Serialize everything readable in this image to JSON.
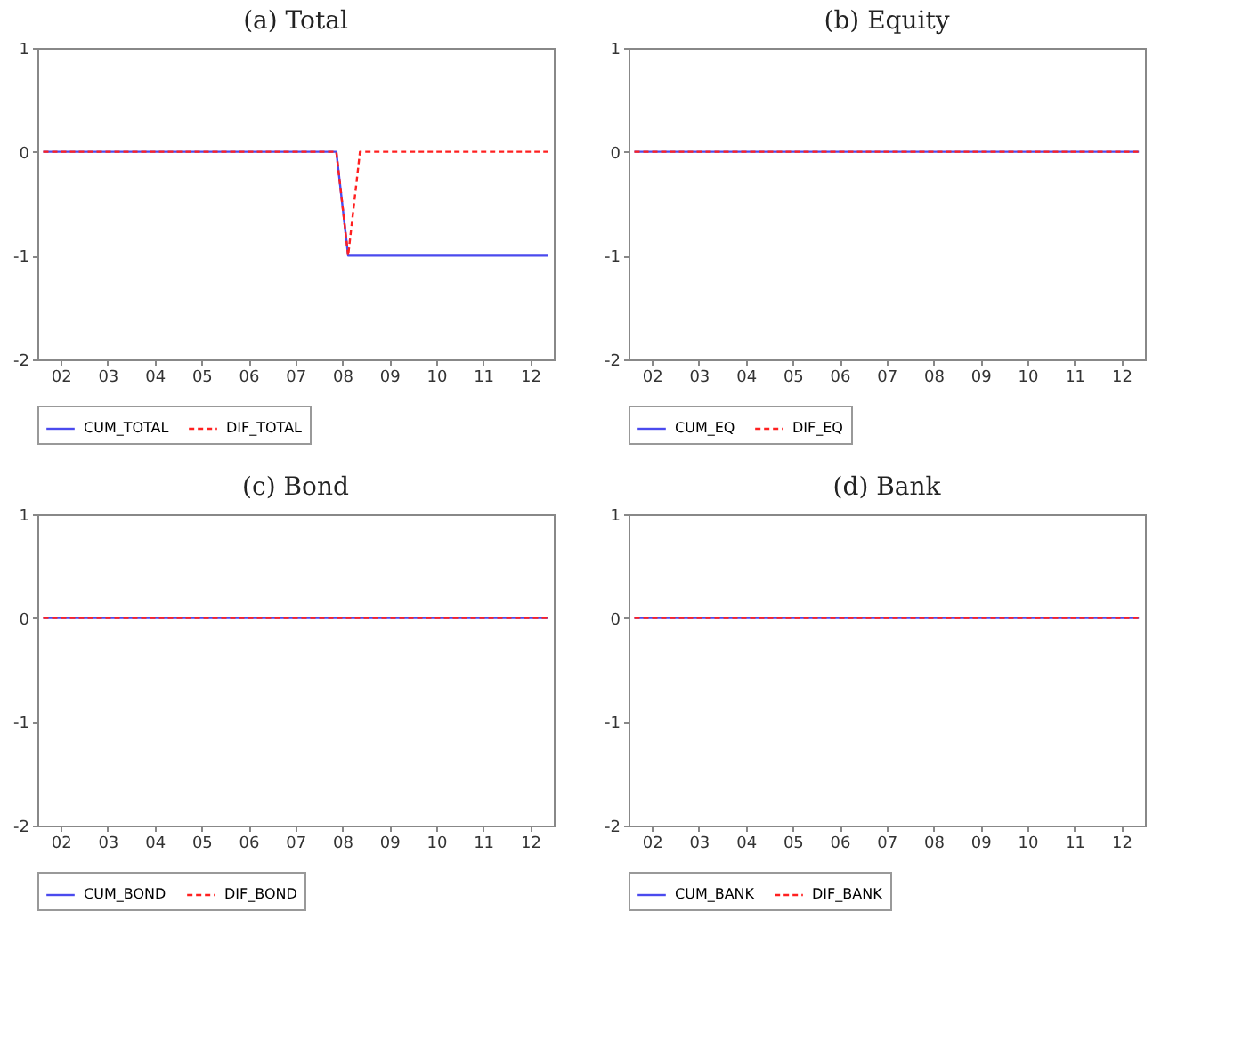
{
  "chart_data": [
    {
      "type": "line",
      "title": "(a) Total",
      "xlim": [
        "2002-01-01",
        "2013-01-01"
      ],
      "ylim": [
        -2,
        1
      ],
      "yticks": [
        -2,
        -1,
        0,
        1
      ],
      "xticks": [
        {
          "value": "2002-07-01",
          "label": "02"
        },
        {
          "value": "2003-07-01",
          "label": "03"
        },
        {
          "value": "2004-07-01",
          "label": "04"
        },
        {
          "value": "2005-07-01",
          "label": "05"
        },
        {
          "value": "2006-07-01",
          "label": "06"
        },
        {
          "value": "2007-07-01",
          "label": "07"
        },
        {
          "value": "2008-07-01",
          "label": "08"
        },
        {
          "value": "2009-07-01",
          "label": "09"
        },
        {
          "value": "2010-07-01",
          "label": "10"
        },
        {
          "value": "2011-07-01",
          "label": "11"
        },
        {
          "value": "2012-07-01",
          "label": "12"
        }
      ],
      "legend": "bottom",
      "series": [
        {
          "name": "CUM_TOTAL",
          "color": "#4a4aee",
          "line_style": "solid",
          "x": [
            "2002-02-15",
            "2008-05-15",
            "2008-08-15",
            "2012-11-15"
          ],
          "values": [
            0,
            0,
            -1,
            -1
          ]
        },
        {
          "name": "DIF_TOTAL",
          "color": "#ff2020",
          "line_style": "dashed",
          "x": [
            "2002-02-15",
            "2008-05-15",
            "2008-08-15",
            "2008-11-15",
            "2012-11-15"
          ],
          "values": [
            0,
            0,
            -1,
            0,
            0
          ]
        }
      ]
    },
    {
      "type": "line",
      "title": "(b) Equity",
      "xlim": [
        "2002-01-01",
        "2013-01-01"
      ],
      "ylim": [
        -2,
        1
      ],
      "yticks": [
        -2,
        -1,
        0,
        1
      ],
      "xticks": [
        {
          "value": "2002-07-01",
          "label": "02"
        },
        {
          "value": "2003-07-01",
          "label": "03"
        },
        {
          "value": "2004-07-01",
          "label": "04"
        },
        {
          "value": "2005-07-01",
          "label": "05"
        },
        {
          "value": "2006-07-01",
          "label": "06"
        },
        {
          "value": "2007-07-01",
          "label": "07"
        },
        {
          "value": "2008-07-01",
          "label": "08"
        },
        {
          "value": "2009-07-01",
          "label": "09"
        },
        {
          "value": "2010-07-01",
          "label": "10"
        },
        {
          "value": "2011-07-01",
          "label": "11"
        },
        {
          "value": "2012-07-01",
          "label": "12"
        }
      ],
      "legend": "bottom",
      "series": [
        {
          "name": "CUM_EQ",
          "color": "#4a4aee",
          "line_style": "solid",
          "x": [
            "2002-02-15",
            "2012-11-15"
          ],
          "values": [
            0,
            0
          ]
        },
        {
          "name": "DIF_EQ",
          "color": "#ff2020",
          "line_style": "dashed",
          "x": [
            "2002-02-15",
            "2012-11-15"
          ],
          "values": [
            0,
            0
          ]
        }
      ]
    },
    {
      "type": "line",
      "title": "(c) Bond",
      "xlim": [
        "2002-01-01",
        "2013-01-01"
      ],
      "ylim": [
        -2,
        1
      ],
      "yticks": [
        -2,
        -1,
        0,
        1
      ],
      "xticks": [
        {
          "value": "2002-07-01",
          "label": "02"
        },
        {
          "value": "2003-07-01",
          "label": "03"
        },
        {
          "value": "2004-07-01",
          "label": "04"
        },
        {
          "value": "2005-07-01",
          "label": "05"
        },
        {
          "value": "2006-07-01",
          "label": "06"
        },
        {
          "value": "2007-07-01",
          "label": "07"
        },
        {
          "value": "2008-07-01",
          "label": "08"
        },
        {
          "value": "2009-07-01",
          "label": "09"
        },
        {
          "value": "2010-07-01",
          "label": "10"
        },
        {
          "value": "2011-07-01",
          "label": "11"
        },
        {
          "value": "2012-07-01",
          "label": "12"
        }
      ],
      "legend": "bottom",
      "series": [
        {
          "name": "CUM_BOND",
          "color": "#4a4aee",
          "line_style": "solid",
          "x": [
            "2002-02-15",
            "2012-11-15"
          ],
          "values": [
            0,
            0
          ]
        },
        {
          "name": "DIF_BOND",
          "color": "#ff2020",
          "line_style": "dashed",
          "x": [
            "2002-02-15",
            "2012-11-15"
          ],
          "values": [
            0,
            0
          ]
        }
      ]
    },
    {
      "type": "line",
      "title": "(d) Bank",
      "xlim": [
        "2002-01-01",
        "2013-01-01"
      ],
      "ylim": [
        -2,
        1
      ],
      "yticks": [
        -2,
        -1,
        0,
        1
      ],
      "xticks": [
        {
          "value": "2002-07-01",
          "label": "02"
        },
        {
          "value": "2003-07-01",
          "label": "03"
        },
        {
          "value": "2004-07-01",
          "label": "04"
        },
        {
          "value": "2005-07-01",
          "label": "05"
        },
        {
          "value": "2006-07-01",
          "label": "06"
        },
        {
          "value": "2007-07-01",
          "label": "07"
        },
        {
          "value": "2008-07-01",
          "label": "08"
        },
        {
          "value": "2009-07-01",
          "label": "09"
        },
        {
          "value": "2010-07-01",
          "label": "10"
        },
        {
          "value": "2011-07-01",
          "label": "11"
        },
        {
          "value": "2012-07-01",
          "label": "12"
        }
      ],
      "legend": "bottom",
      "series": [
        {
          "name": "CUM_BANK",
          "color": "#4a4aee",
          "line_style": "solid",
          "x": [
            "2002-02-15",
            "2012-11-15"
          ],
          "values": [
            0,
            0
          ]
        },
        {
          "name": "DIF_BANK",
          "color": "#ff2020",
          "line_style": "dashed",
          "x": [
            "2002-02-15",
            "2012-11-15"
          ],
          "values": [
            0,
            0
          ]
        }
      ]
    }
  ]
}
